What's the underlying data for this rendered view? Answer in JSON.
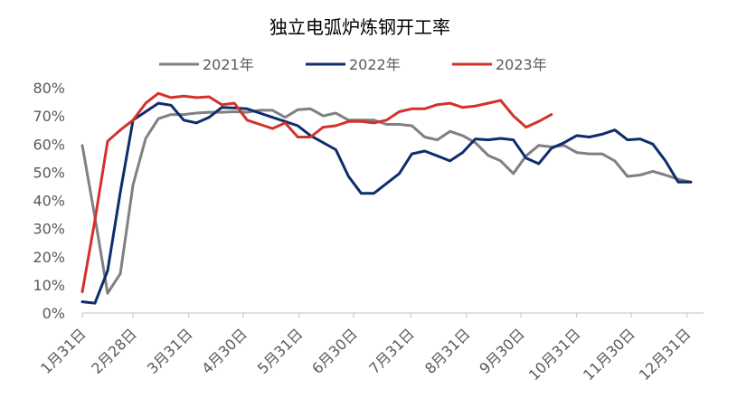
{
  "chart_data": {
    "type": "line",
    "title": "独立电弧炉炼钢开工率",
    "xlabel": "",
    "ylabel": "",
    "ylim": [
      0,
      80
    ],
    "x_range_weeks": [
      0,
      49
    ],
    "grid": false,
    "legend_position": "top",
    "y_ticks": [
      "0%",
      "10%",
      "20%",
      "30%",
      "40%",
      "50%",
      "60%",
      "70%",
      "80%"
    ],
    "x_ticks": [
      {
        "label": "1月31日",
        "week": 0
      },
      {
        "label": "2月28日",
        "week": 4
      },
      {
        "label": "3月31日",
        "week": 8.4
      },
      {
        "label": "4月30日",
        "week": 12.7
      },
      {
        "label": "5月31日",
        "week": 17.1
      },
      {
        "label": "6月30日",
        "week": 21.4
      },
      {
        "label": "7月31日",
        "week": 25.9
      },
      {
        "label": "8月31日",
        "week": 30.3
      },
      {
        "label": "9月30日",
        "week": 34.6
      },
      {
        "label": "10月31日",
        "week": 39
      },
      {
        "label": "11月30日",
        "week": 43.3
      },
      {
        "label": "12月31日",
        "week": 47.7
      }
    ],
    "series": [
      {
        "name": "2021年",
        "color": "#808080",
        "x": [
          0,
          1,
          2,
          3,
          4,
          5,
          6,
          7,
          8,
          9,
          10,
          11,
          12,
          13,
          14,
          15,
          16,
          17,
          18,
          19,
          20,
          21,
          22,
          23,
          24,
          25,
          26,
          27,
          28,
          29,
          30,
          31,
          32,
          33,
          34,
          35,
          36,
          37,
          38,
          39,
          40,
          41,
          42,
          43,
          44,
          45,
          46,
          47,
          48
        ],
        "values": [
          59.5,
          34,
          7,
          14,
          45.5,
          62,
          69,
          70.5,
          70.5,
          71,
          71.3,
          71.3,
          71.5,
          71.3,
          72,
          72,
          69.5,
          72.2,
          72.5,
          70,
          71,
          68.5,
          68.5,
          68.5,
          67,
          67,
          66.5,
          62.5,
          61.5,
          64.5,
          63,
          60.5,
          56,
          54,
          49.5,
          55.8,
          59.5,
          59,
          59.5,
          57,
          56.5,
          56.5,
          54,
          48.5,
          49,
          50.3,
          49,
          47.5,
          46.5
        ]
      },
      {
        "name": "2022年",
        "color": "#0d2d6c",
        "x": [
          0,
          1,
          2,
          3,
          4,
          5,
          6,
          7,
          8,
          9,
          10,
          11,
          12,
          13,
          14,
          15,
          16,
          17,
          18,
          19,
          20,
          21,
          22,
          23,
          24,
          25,
          26,
          27,
          28,
          29,
          30,
          31,
          32,
          33,
          34,
          35,
          36,
          37,
          38,
          39,
          40,
          41,
          42,
          43,
          44,
          45,
          46,
          47,
          48
        ],
        "values": [
          4,
          3.5,
          15,
          43,
          68.5,
          71.5,
          74.5,
          73.8,
          68.5,
          67.5,
          69.5,
          73,
          72.8,
          72.5,
          71,
          69.5,
          68,
          66.5,
          63,
          60.5,
          58,
          48.5,
          42.5,
          42.5,
          46,
          49.5,
          56.5,
          57.5,
          55.8,
          54,
          57,
          61.8,
          61.5,
          62,
          61.5,
          55,
          53,
          58.5,
          60.5,
          63,
          62.5,
          63.5,
          65,
          61.5,
          61.8,
          60,
          54,
          46.5,
          46.5
        ]
      },
      {
        "name": "2023年",
        "color": "#d3322c",
        "x": [
          0,
          1,
          2,
          3,
          4,
          5,
          6,
          7,
          8,
          9,
          10,
          11,
          12,
          13,
          14,
          15,
          16,
          17,
          18,
          19,
          20,
          21,
          22,
          23,
          24,
          25,
          26,
          27,
          28,
          29,
          30,
          31,
          32,
          33,
          34,
          35,
          36,
          37
        ],
        "values": [
          7.5,
          33,
          61,
          65,
          68.5,
          74.5,
          78,
          76.5,
          77,
          76.5,
          76.8,
          74,
          74.5,
          68.5,
          67,
          65.5,
          67.5,
          62.5,
          62.5,
          66,
          66.5,
          68,
          68,
          67.5,
          68.5,
          71.5,
          72.5,
          72.5,
          74,
          74.5,
          73,
          73.5,
          74.5,
          75.5,
          70,
          66,
          68,
          70.5
        ]
      }
    ]
  }
}
